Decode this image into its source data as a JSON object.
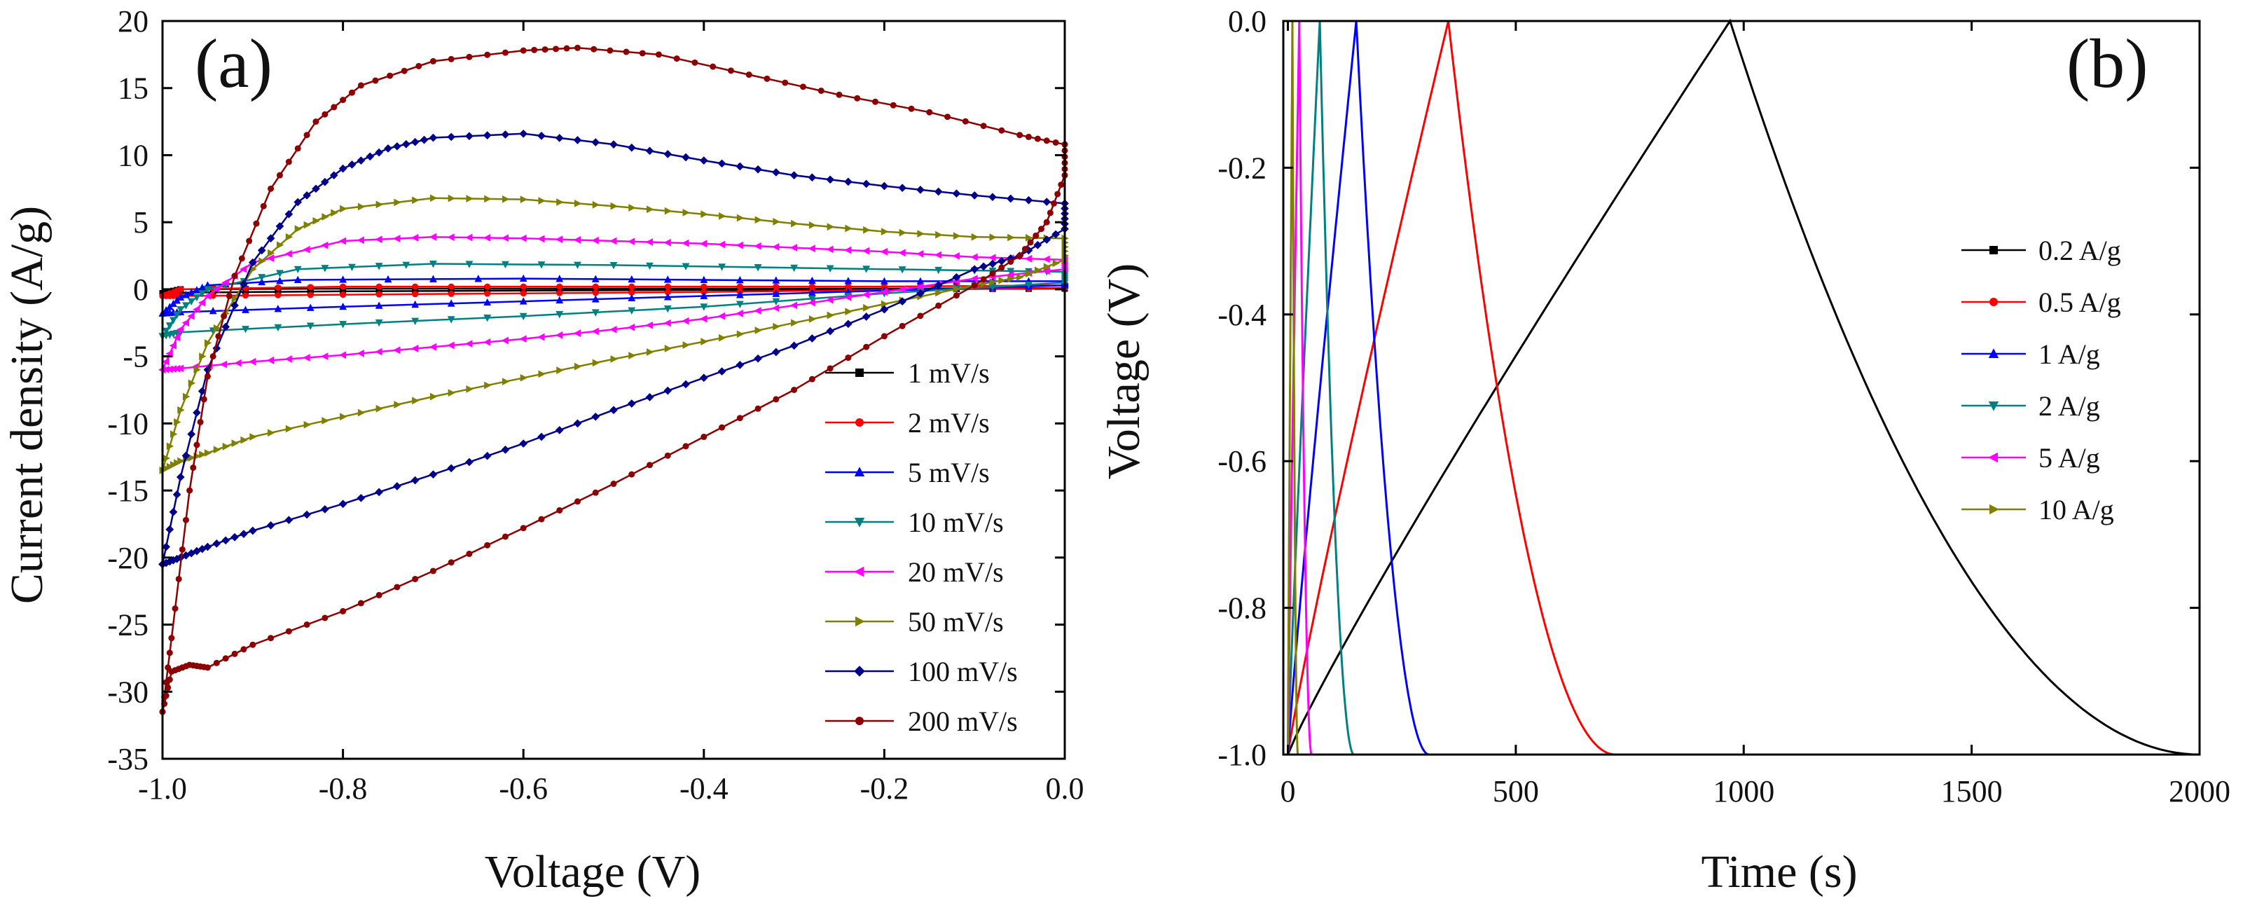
{
  "chart_data": [
    {
      "type": "line",
      "panel_label": "(a)",
      "title": "",
      "xlabel": "Voltage (V)",
      "ylabel": "Current density (A/g)",
      "xlim": [
        -1.0,
        0.0
      ],
      "ylim": [
        -35,
        20
      ],
      "xticks": [
        -1.0,
        -0.8,
        -0.6,
        -0.4,
        -0.2,
        0.0
      ],
      "xtick_labels": [
        "-1.0",
        "-0.8",
        "-0.6",
        "-0.4",
        "-0.2",
        "0.0"
      ],
      "yticks": [
        -35,
        -30,
        -25,
        -20,
        -15,
        -10,
        -5,
        0,
        5,
        10,
        15,
        20
      ],
      "ytick_labels": [
        "-35",
        "-30",
        "-25",
        "-20",
        "-15",
        "-10",
        "-5",
        "0",
        "5",
        "10",
        "15",
        "20"
      ],
      "legend_position": "bottom-right",
      "series": [
        {
          "name": "1 mV/s",
          "color": "#000000",
          "marker": "square",
          "x": [
            -1.0,
            -0.98,
            -0.8,
            -0.6,
            -0.4,
            -0.2,
            0.0,
            0.0,
            -0.2,
            -0.4,
            -0.6,
            -0.8,
            -0.98,
            -1.0
          ],
          "y": [
            -0.3,
            0.0,
            0.05,
            0.05,
            0.05,
            0.05,
            0.1,
            0.05,
            0.0,
            -0.05,
            -0.1,
            -0.15,
            -0.25,
            -0.3
          ]
        },
        {
          "name": "2 mV/s",
          "color": "#ff0000",
          "marker": "circle",
          "x": [
            -1.0,
            -0.98,
            -0.8,
            -0.6,
            -0.4,
            -0.2,
            0.0,
            0.0,
            -0.2,
            -0.4,
            -0.6,
            -0.8,
            -0.98,
            -1.0
          ],
          "y": [
            -0.5,
            0.0,
            0.2,
            0.2,
            0.2,
            0.2,
            0.3,
            0.1,
            -0.05,
            -0.2,
            -0.3,
            -0.4,
            -0.5,
            -0.5
          ]
        },
        {
          "name": "5 mV/s",
          "color": "#0000ff",
          "marker": "triangle-up",
          "x": [
            -1.0,
            -0.98,
            -0.95,
            -0.85,
            -0.6,
            -0.4,
            -0.2,
            0.0,
            0.0,
            -0.2,
            -0.4,
            -0.6,
            -0.8,
            -0.98,
            -1.0
          ],
          "y": [
            -1.8,
            -0.6,
            0.3,
            0.7,
            0.8,
            0.7,
            0.6,
            0.6,
            0.3,
            -0.1,
            -0.5,
            -0.9,
            -1.3,
            -1.7,
            -1.8
          ]
        },
        {
          "name": "10 mV/s",
          "color": "#008080",
          "marker": "triangle-down",
          "x": [
            -1.0,
            -0.98,
            -0.95,
            -0.85,
            -0.7,
            -0.5,
            -0.3,
            -0.1,
            0.0,
            0.0,
            -0.2,
            -0.4,
            -0.6,
            -0.8,
            -0.98,
            -1.0
          ],
          "y": [
            -3.5,
            -1.5,
            0.0,
            1.5,
            1.9,
            1.8,
            1.6,
            1.4,
            1.3,
            0.5,
            -0.3,
            -1.3,
            -2.0,
            -2.6,
            -3.2,
            -3.5
          ]
        },
        {
          "name": "20 mV/s",
          "color": "#ff00ff",
          "marker": "triangle-left",
          "x": [
            -1.0,
            -0.98,
            -0.95,
            -0.9,
            -0.8,
            -0.7,
            -0.6,
            -0.5,
            -0.4,
            -0.3,
            -0.2,
            -0.1,
            0.0,
            0.0,
            -0.1,
            -0.2,
            -0.3,
            -0.4,
            -0.5,
            -0.6,
            -0.7,
            -0.8,
            -0.9,
            -0.98,
            -1.0
          ],
          "y": [
            -6.0,
            -3.0,
            -0.5,
            2.0,
            3.6,
            3.9,
            3.8,
            3.6,
            3.4,
            3.1,
            2.8,
            2.4,
            2.2,
            1.5,
            0.8,
            -0.2,
            -1.2,
            -2.2,
            -3.0,
            -3.7,
            -4.3,
            -4.9,
            -5.4,
            -5.9,
            -6.0
          ]
        },
        {
          "name": "50 mV/s",
          "color": "#808000",
          "marker": "triangle-right",
          "x": [
            -1.0,
            -0.98,
            -0.95,
            -0.9,
            -0.85,
            -0.8,
            -0.7,
            -0.6,
            -0.5,
            -0.4,
            -0.3,
            -0.2,
            -0.1,
            0.0,
            0.0,
            -0.05,
            -0.1,
            -0.2,
            -0.3,
            -0.4,
            -0.5,
            -0.6,
            -0.7,
            -0.8,
            -0.9,
            -0.95,
            -0.98,
            -1.0
          ],
          "y": [
            -13.5,
            -9.0,
            -4.0,
            1.5,
            4.5,
            6.0,
            6.8,
            6.7,
            6.2,
            5.6,
            4.9,
            4.3,
            3.9,
            3.8,
            2.2,
            0.9,
            0.3,
            -1.1,
            -2.5,
            -3.9,
            -5.2,
            -6.6,
            -8.0,
            -9.5,
            -11.0,
            -12.2,
            -12.8,
            -13.5
          ]
        },
        {
          "name": "100 mV/s",
          "color": "#00008b",
          "marker": "diamond",
          "x": [
            -1.0,
            -0.98,
            -0.95,
            -0.9,
            -0.85,
            -0.8,
            -0.75,
            -0.7,
            -0.6,
            -0.5,
            -0.4,
            -0.3,
            -0.2,
            -0.1,
            0.0,
            0.0,
            -0.05,
            -0.1,
            -0.2,
            -0.3,
            -0.4,
            -0.5,
            -0.6,
            -0.7,
            -0.8,
            -0.9,
            -0.95,
            -0.98,
            -1.0
          ],
          "y": [
            -20.5,
            -14.0,
            -6.0,
            2.0,
            6.5,
            9.0,
            10.5,
            11.3,
            11.6,
            10.8,
            9.6,
            8.5,
            7.7,
            7.0,
            6.4,
            4.5,
            2.5,
            1.5,
            -1.5,
            -4.2,
            -6.6,
            -9.0,
            -11.5,
            -13.8,
            -16.0,
            -18.0,
            -19.2,
            -20.0,
            -20.5
          ]
        },
        {
          "name": "200 mV/s",
          "color": "#8b0000",
          "marker": "circle",
          "x": [
            -1.0,
            -0.99,
            -0.97,
            -0.95,
            -0.92,
            -0.88,
            -0.83,
            -0.78,
            -0.7,
            -0.6,
            -0.54,
            -0.45,
            -0.35,
            -0.25,
            -0.15,
            -0.05,
            0.0,
            0.0,
            -0.02,
            -0.05,
            -0.1,
            -0.2,
            -0.3,
            -0.4,
            -0.5,
            -0.6,
            -0.7,
            -0.8,
            -0.9,
            -0.95,
            -0.97,
            -0.99,
            -1.0
          ],
          "y": [
            -31.5,
            -26.0,
            -15.0,
            -6.5,
            1.0,
            7.5,
            12.5,
            15.2,
            17.0,
            17.8,
            18.0,
            17.5,
            16.0,
            14.5,
            13.2,
            11.5,
            10.8,
            8.5,
            5.0,
            2.5,
            0.3,
            -3.5,
            -7.5,
            -11.0,
            -14.5,
            -17.8,
            -21.0,
            -24.0,
            -26.5,
            -28.2,
            -28.0,
            -28.5,
            -31.5
          ]
        }
      ]
    },
    {
      "type": "line",
      "panel_label": "(b)",
      "title": "",
      "xlabel": "Time (s)",
      "ylabel": "Voltage (V)",
      "xlim": [
        -10,
        2000
      ],
      "ylim": [
        -1.0,
        0.0
      ],
      "xticks": [
        0,
        500,
        1000,
        1500,
        2000
      ],
      "xtick_labels": [
        "0",
        "500",
        "1000",
        "1500",
        "2000"
      ],
      "yticks": [
        -1.0,
        -0.8,
        -0.6,
        -0.4,
        -0.2,
        0.0
      ],
      "ytick_labels": [
        "-1.0",
        "-0.8",
        "-0.6",
        "-0.4",
        "-0.2",
        "0.0"
      ],
      "legend_position": "center-right",
      "series": [
        {
          "name": "0.2 A/g",
          "color": "#000000",
          "marker": "square",
          "charge_time_s": 970,
          "discharge_end_s": 2000
        },
        {
          "name": "0.5 A/g",
          "color": "#ff0000",
          "marker": "circle",
          "charge_time_s": 352,
          "discharge_end_s": 718
        },
        {
          "name": "1 A/g",
          "color": "#0000ff",
          "marker": "triangle-up",
          "charge_time_s": 150,
          "discharge_end_s": 310
        },
        {
          "name": "2 A/g",
          "color": "#008080",
          "marker": "triangle-down",
          "charge_time_s": 70,
          "discharge_end_s": 145
        },
        {
          "name": "5 A/g",
          "color": "#ff00ff",
          "marker": "triangle-left",
          "charge_time_s": 25,
          "discharge_end_s": 52
        },
        {
          "name": "10 A/g",
          "color": "#808000",
          "marker": "triangle-right",
          "charge_time_s": 10,
          "discharge_end_s": 22
        }
      ]
    }
  ]
}
